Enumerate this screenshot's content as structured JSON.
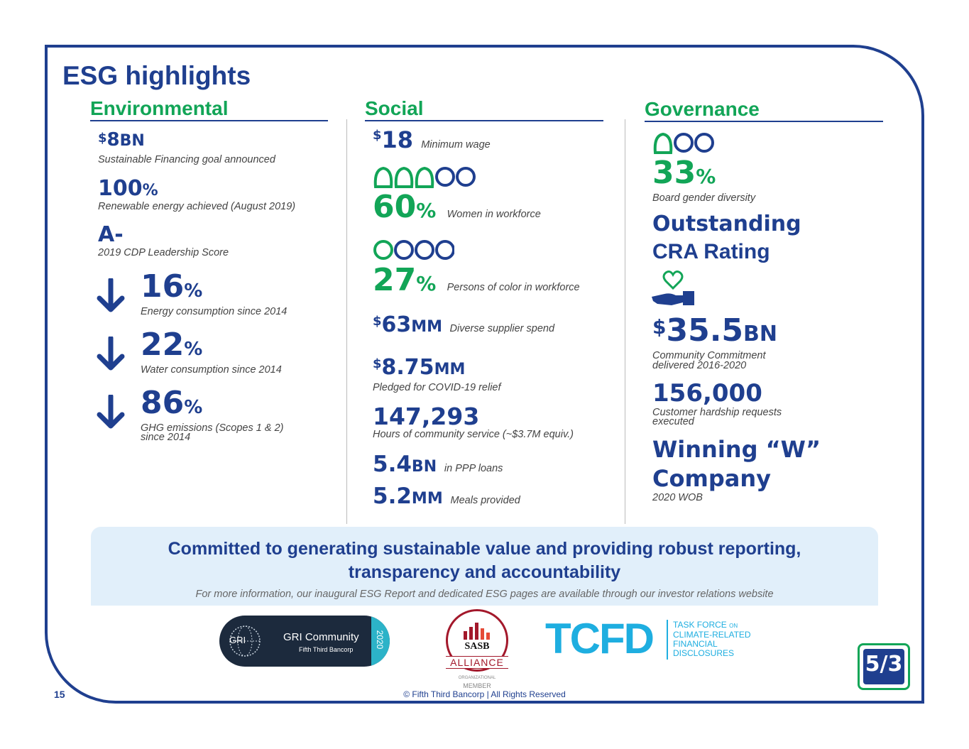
{
  "title": "ESG highlights",
  "columns": {
    "environmental": {
      "heading": "Environmental",
      "items": [
        {
          "dollar": "$",
          "value": "8",
          "unit": "BN",
          "caption": "Sustainable Financing goal announced"
        },
        {
          "value": "100",
          "unit": "%",
          "caption": "Renewable energy achieved (August 2019)"
        },
        {
          "value": "A-",
          "caption": "2019 CDP Leadership Score"
        },
        {
          "value": "16",
          "unit": "%",
          "caption": "Energy consumption since 2014",
          "icon": "down-arrow-icon"
        },
        {
          "value": "22",
          "unit": "%",
          "caption": "Water consumption since 2014",
          "icon": "down-arrow-icon"
        },
        {
          "value": "86",
          "unit": "%",
          "caption_line1": "GHG emissions (Scopes 1 & 2)",
          "caption_line2": "since 2014",
          "icon": "down-arrow-icon"
        }
      ]
    },
    "social": {
      "heading": "Social",
      "items": [
        {
          "dollar": "$",
          "value": "18",
          "caption": "Minimum wage"
        },
        {
          "value": "60",
          "unit": "%",
          "caption": "Women in workforce",
          "icons": "women-icons"
        },
        {
          "value": "27",
          "unit": "%",
          "caption": "Persons of color in workforce",
          "icons": "people-icons"
        },
        {
          "dollar": "$",
          "value": "63",
          "unit": "MM",
          "caption": "Diverse supplier spend"
        },
        {
          "dollar": "$",
          "value": "8.75",
          "unit": "MM",
          "caption": "Pledged for COVID-19 relief"
        },
        {
          "value": "147,293",
          "caption": "Hours of community service (~$3.7M equiv.)"
        },
        {
          "value": "5.4",
          "unit": "BN",
          "caption": "in PPP loans"
        },
        {
          "value": "5.2",
          "unit": "MM",
          "caption": "Meals provided"
        }
      ]
    },
    "governance": {
      "heading": "Governance",
      "items": [
        {
          "value": "33",
          "unit": "%",
          "caption": "Board gender diversity",
          "icons": "board-icons"
        },
        {
          "value_line1": "Outstanding",
          "value_line2": "CRA Rating"
        },
        {
          "dollar": "$",
          "value": "35.5",
          "unit": "BN",
          "caption_line1": "Community Commitment",
          "caption_line2": "delivered 2016-2020",
          "icon": "hand-heart-icon"
        },
        {
          "value": "156,000",
          "caption_line1": "Customer hardship requests",
          "caption_line2": "executed"
        },
        {
          "value_line1": "Winning “W”",
          "value_line2": "Company",
          "caption": "2020 WOB"
        }
      ]
    }
  },
  "banner": {
    "headline_line1": "Committed to generating sustainable value and providing robust reporting,",
    "headline_line2": "transparency and accountability",
    "note": "For more information, our inaugural ESG Report and dedicated ESG pages are available through our investor relations website"
  },
  "logos": {
    "gri": {
      "mark": "GRI",
      "name": "GRI Community",
      "sub": "Fifth Third Bancorp",
      "year": "2020"
    },
    "sasb": {
      "mark": "SASB",
      "name": "ALLIANCE",
      "sub1": "ORGANIZATIONAL",
      "sub2": "MEMBER"
    },
    "tcfd": {
      "mark": "TCFD",
      "line1_a": "TASK FORCE",
      "line1_b": "ON",
      "line2": "CLIMATE-RELATED",
      "line3": "FINANCIAL",
      "line4": "DISCLOSURES"
    },
    "fifth_third": {
      "mark": "5/3"
    }
  },
  "footer": {
    "page_number": "15",
    "copyright": "© Fifth Third Bancorp | All Rights Reserved"
  },
  "colors": {
    "navy": "#1f3f8f",
    "green": "#12a557",
    "banner": "#e1effa",
    "gri_teal": "#2cb3c8",
    "sasb_red": "#a3182b",
    "tcfd_blue": "#1eaee0"
  }
}
